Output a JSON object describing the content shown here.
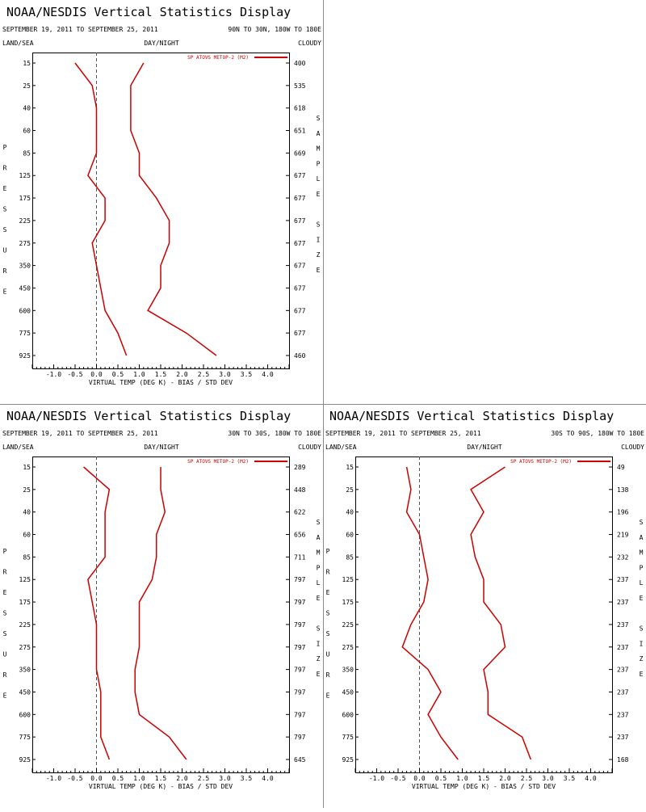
{
  "panels": [
    {
      "title": "NOAA/NESDIS Vertical Statistics Display",
      "date_range": "SEPTEMBER 19, 2011 TO SEPTEMBER 25, 2011",
      "region": "90N TO 30N, 180W TO 180E",
      "label_land_sea": "LAND/SEA",
      "label_day_night": "DAY/NIGHT",
      "label_cloudy": "CLOUDY",
      "left_axis_label": [
        "P",
        "R",
        "E",
        "S",
        "S",
        "U",
        "R",
        "E"
      ],
      "right_axis_label": [
        "S",
        "A",
        "M",
        "P",
        "L",
        "E",
        "",
        "S",
        "I",
        "Z",
        "E"
      ],
      "chart_data": {
        "type": "line",
        "title": "NOAA/NESDIS Vertical Statistics Display",
        "xlabel": "VIRTUAL TEMP (DEG K) - BIAS / STD DEV",
        "ylabel": "PRESSURE",
        "xlim": [
          -1.5,
          4.5
        ],
        "x_ticks": [
          "-1.0",
          "-0.5",
          "0.0",
          "0.5",
          "1.0",
          "1.5",
          "2.0",
          "2.5",
          "3.0",
          "3.5",
          "4.0"
        ],
        "pressure_levels": [
          "15",
          "25",
          "40",
          "60",
          "85",
          "125",
          "175",
          "225",
          "275",
          "350",
          "450",
          "600",
          "775",
          "925"
        ],
        "sample_size": [
          "400",
          "535",
          "618",
          "651",
          "669",
          "677",
          "677",
          "677",
          "677",
          "677",
          "677",
          "677",
          "677",
          "460"
        ],
        "legend": "SP ATOVS METOP-2 (M2)",
        "legend_color": "#cc0000",
        "series": [
          {
            "name": "SP ATOVS METOP-2 (M2)",
            "kind": "bias",
            "values": [
              -0.5,
              -0.1,
              0.0,
              0.0,
              0.0,
              -0.2,
              0.2,
              0.2,
              -0.1,
              0.0,
              0.1,
              0.2,
              0.5,
              0.7
            ]
          },
          {
            "name": "SP ATOVS METOP-2 (M2)",
            "kind": "std_dev",
            "values": [
              1.1,
              0.8,
              0.8,
              0.8,
              1.0,
              1.0,
              1.4,
              1.7,
              1.7,
              1.5,
              1.5,
              1.2,
              2.1,
              2.8
            ]
          }
        ]
      }
    },
    {
      "title": "NOAA/NESDIS Vertical Statistics Display",
      "date_range": "SEPTEMBER 19, 2011 TO SEPTEMBER 25, 2011",
      "region": "30N TO 30S, 180W TO 180E",
      "label_land_sea": "LAND/SEA",
      "label_day_night": "DAY/NIGHT",
      "label_cloudy": "CLOUDY",
      "left_axis_label": [
        "P",
        "R",
        "E",
        "S",
        "S",
        "U",
        "R",
        "E"
      ],
      "right_axis_label": [
        "S",
        "A",
        "M",
        "P",
        "L",
        "E",
        "",
        "S",
        "I",
        "Z",
        "E"
      ],
      "chart_data": {
        "type": "line",
        "title": "NOAA/NESDIS Vertical Statistics Display",
        "xlabel": "VIRTUAL TEMP (DEG K) - BIAS / STD DEV",
        "ylabel": "PRESSURE",
        "xlim": [
          -1.5,
          4.5
        ],
        "x_ticks": [
          "-1.0",
          "-0.5",
          "0.0",
          "0.5",
          "1.0",
          "1.5",
          "2.0",
          "2.5",
          "3.0",
          "3.5",
          "4.0"
        ],
        "pressure_levels": [
          "15",
          "25",
          "40",
          "60",
          "85",
          "125",
          "175",
          "225",
          "275",
          "350",
          "450",
          "600",
          "775",
          "925"
        ],
        "sample_size": [
          "289",
          "448",
          "622",
          "656",
          "711",
          "797",
          "797",
          "797",
          "797",
          "797",
          "797",
          "797",
          "797",
          "645"
        ],
        "legend": "SP ATOVS METOP-2 (M2)",
        "legend_color": "#cc0000",
        "series": [
          {
            "name": "SP ATOVS METOP-2 (M2)",
            "kind": "bias",
            "values": [
              -0.3,
              0.3,
              0.2,
              0.2,
              0.2,
              -0.2,
              -0.1,
              0.0,
              0.0,
              0.0,
              0.1,
              0.1,
              0.1,
              0.3
            ]
          },
          {
            "name": "SP ATOVS METOP-2 (M2)",
            "kind": "std_dev",
            "values": [
              1.5,
              1.5,
              1.6,
              1.4,
              1.4,
              1.3,
              1.0,
              1.0,
              1.0,
              0.9,
              0.9,
              1.0,
              1.7,
              2.1
            ]
          }
        ]
      }
    },
    {
      "title": "NOAA/NESDIS Vertical Statistics Display",
      "date_range": "SEPTEMBER 19, 2011 TO SEPTEMBER 25, 2011",
      "region": "30S TO 90S, 180W TO 180E",
      "label_land_sea": "LAND/SEA",
      "label_day_night": "DAY/NIGHT",
      "label_cloudy": "CLOUDY",
      "left_axis_label": [
        "P",
        "R",
        "E",
        "S",
        "S",
        "U",
        "R",
        "E"
      ],
      "right_axis_label": [
        "S",
        "A",
        "M",
        "P",
        "L",
        "E",
        "",
        "S",
        "I",
        "Z",
        "E"
      ],
      "chart_data": {
        "type": "line",
        "title": "NOAA/NESDIS Vertical Statistics Display",
        "xlabel": "VIRTUAL TEMP (DEG K) - BIAS / STD DEV",
        "ylabel": "PRESSURE",
        "xlim": [
          -1.5,
          4.5
        ],
        "x_ticks": [
          "-1.0",
          "-0.5",
          "0.0",
          "0.5",
          "1.0",
          "1.5",
          "2.0",
          "2.5",
          "3.0",
          "3.5",
          "4.0"
        ],
        "pressure_levels": [
          "15",
          "25",
          "40",
          "60",
          "85",
          "125",
          "175",
          "225",
          "275",
          "350",
          "450",
          "600",
          "775",
          "925"
        ],
        "sample_size": [
          "49",
          "138",
          "196",
          "219",
          "232",
          "237",
          "237",
          "237",
          "237",
          "237",
          "237",
          "237",
          "237",
          "168"
        ],
        "legend": "SP ATOVS METOP-2 (M2)",
        "legend_color": "#cc0000",
        "series": [
          {
            "name": "SP ATOVS METOP-2 (M2)",
            "kind": "bias",
            "values": [
              -0.3,
              -0.2,
              -0.3,
              0.0,
              0.1,
              0.2,
              0.1,
              -0.2,
              -0.4,
              0.2,
              0.5,
              0.2,
              0.5,
              0.9
            ]
          },
          {
            "name": "SP ATOVS METOP-2 (M2)",
            "kind": "std_dev",
            "values": [
              2.0,
              1.2,
              1.5,
              1.2,
              1.3,
              1.5,
              1.5,
              1.9,
              2.0,
              1.5,
              1.6,
              1.6,
              2.4,
              2.6
            ]
          }
        ]
      }
    }
  ]
}
